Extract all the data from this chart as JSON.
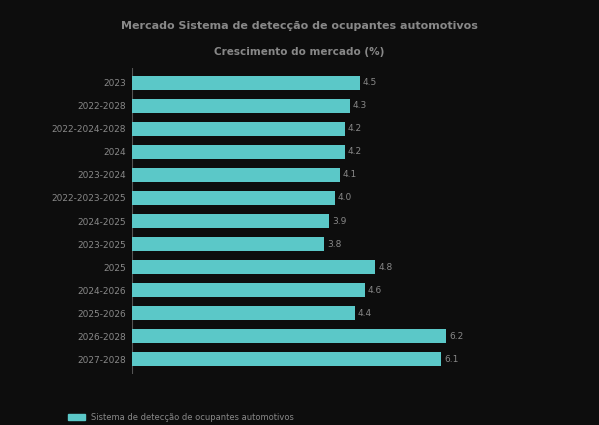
{
  "title_line1": "Mercado Sistema de detecção de ocupantes automotivos",
  "title_line2": "Crescimento do mercado (%)",
  "categories_top_to_bottom": [
    "2023",
    "2022-2028",
    "2022-2024-2028",
    "2024",
    "2023-2024",
    "2022-2023-2025",
    "2024-2025",
    "2023-2025",
    "2025",
    "2024-2026",
    "2025-2026",
    "2026-2028",
    "2027-2028"
  ],
  "values_top_to_bottom": [
    4.5,
    4.3,
    4.2,
    4.2,
    4.1,
    4.0,
    3.9,
    3.8,
    4.8,
    4.6,
    4.4,
    6.2,
    6.1
  ],
  "bar_color": "#5bc8c8",
  "background_color": "#0d0d0d",
  "plot_bg_color": "#0d0d0d",
  "text_color": "#888888",
  "title_color": "#888888",
  "legend_text": "Sistema de detecção de ocupantes automotivos",
  "legend_color": "#5bc8c8",
  "xlim": [
    0,
    7.8
  ],
  "bar_height": 0.62
}
